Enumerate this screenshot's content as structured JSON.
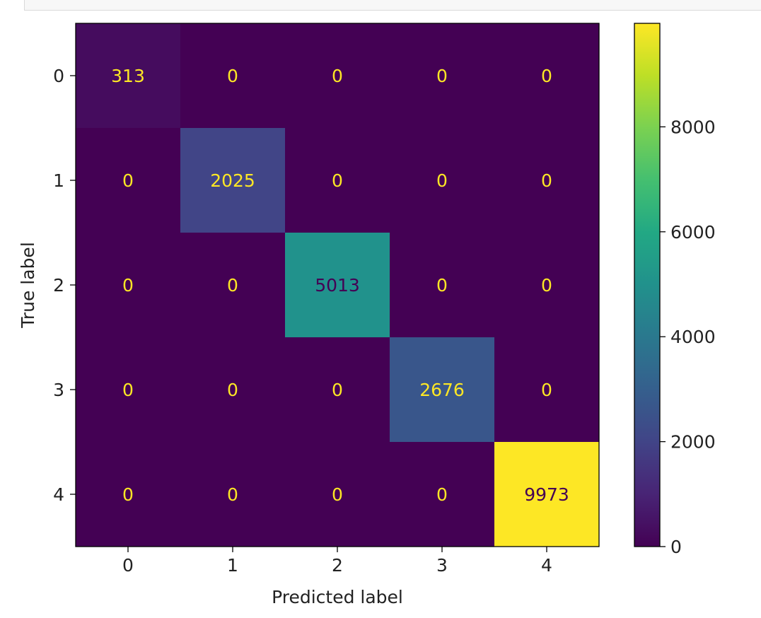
{
  "chart_data": {
    "type": "heatmap",
    "x_categories": [
      "0",
      "1",
      "2",
      "3",
      "4"
    ],
    "y_categories": [
      "0",
      "1",
      "2",
      "3",
      "4"
    ],
    "matrix": [
      [
        313,
        0,
        0,
        0,
        0
      ],
      [
        0,
        2025,
        0,
        0,
        0
      ],
      [
        0,
        0,
        5013,
        0,
        0
      ],
      [
        0,
        0,
        0,
        2676,
        0
      ],
      [
        0,
        0,
        0,
        0,
        9973
      ]
    ],
    "xlabel": "Predicted label",
    "ylabel": "True label",
    "colormap": "viridis",
    "colorbar": {
      "range": [
        0,
        9973
      ],
      "ticks": [
        0,
        2000,
        4000,
        6000,
        8000
      ],
      "tick_labels": [
        "0",
        "2000",
        "4000",
        "6000",
        "8000"
      ]
    },
    "text_colors": {
      "light": "#fde725",
      "dark": "#440154"
    },
    "grid": false
  }
}
